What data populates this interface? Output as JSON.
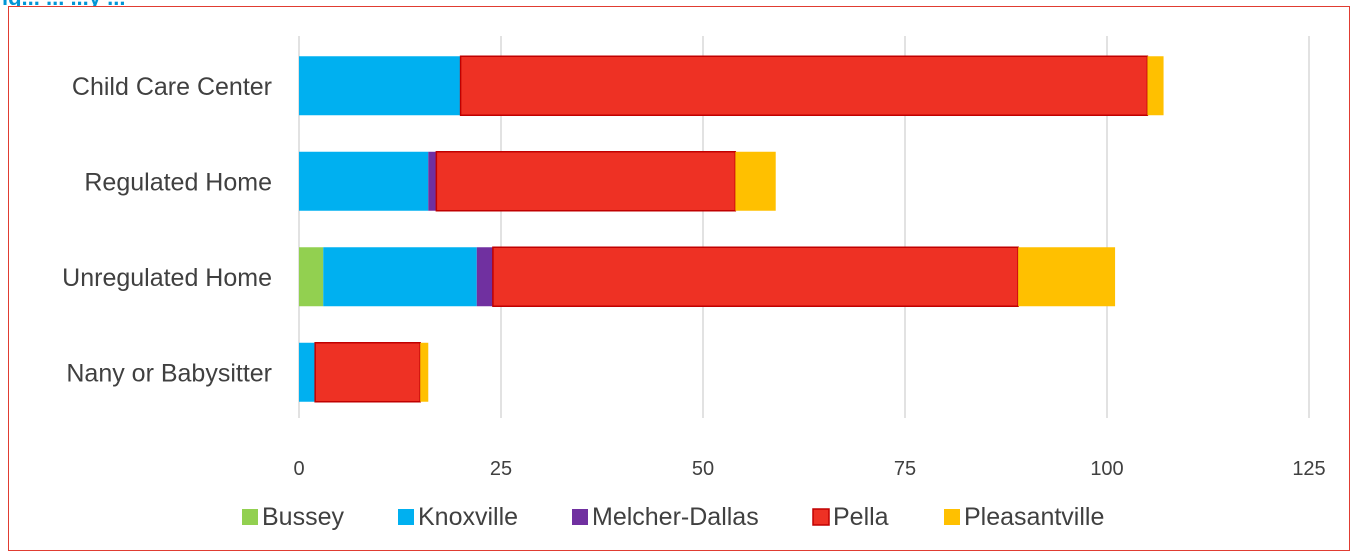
{
  "figure": {
    "title_fragment": "ig... ... ...y ..."
  },
  "chart_data": {
    "type": "bar",
    "orientation": "horizontal",
    "stacked": true,
    "categories": [
      "Child Care Center",
      "Regulated Home",
      "Unregulated Home",
      "Nany or Babysitter"
    ],
    "series": [
      {
        "name": "Bussey",
        "color": "#92d050",
        "values": [
          0,
          0,
          3,
          0
        ]
      },
      {
        "name": "Knoxville",
        "color": "#00b0f0",
        "values": [
          20,
          16,
          19,
          2
        ]
      },
      {
        "name": "Melcher-Dallas",
        "color": "#7030a0",
        "values": [
          0,
          1,
          2,
          0
        ]
      },
      {
        "name": "Pella",
        "color": "#ee3124",
        "values": [
          85,
          37,
          65,
          13
        ]
      },
      {
        "name": "Pleasantville",
        "color": "#ffc000",
        "values": [
          2,
          5,
          12,
          1
        ]
      }
    ],
    "x_ticks": [
      "0",
      "25",
      "50",
      "75",
      "100",
      "125"
    ],
    "xlim": [
      0,
      125
    ],
    "grid": true,
    "legend": "bottom"
  }
}
